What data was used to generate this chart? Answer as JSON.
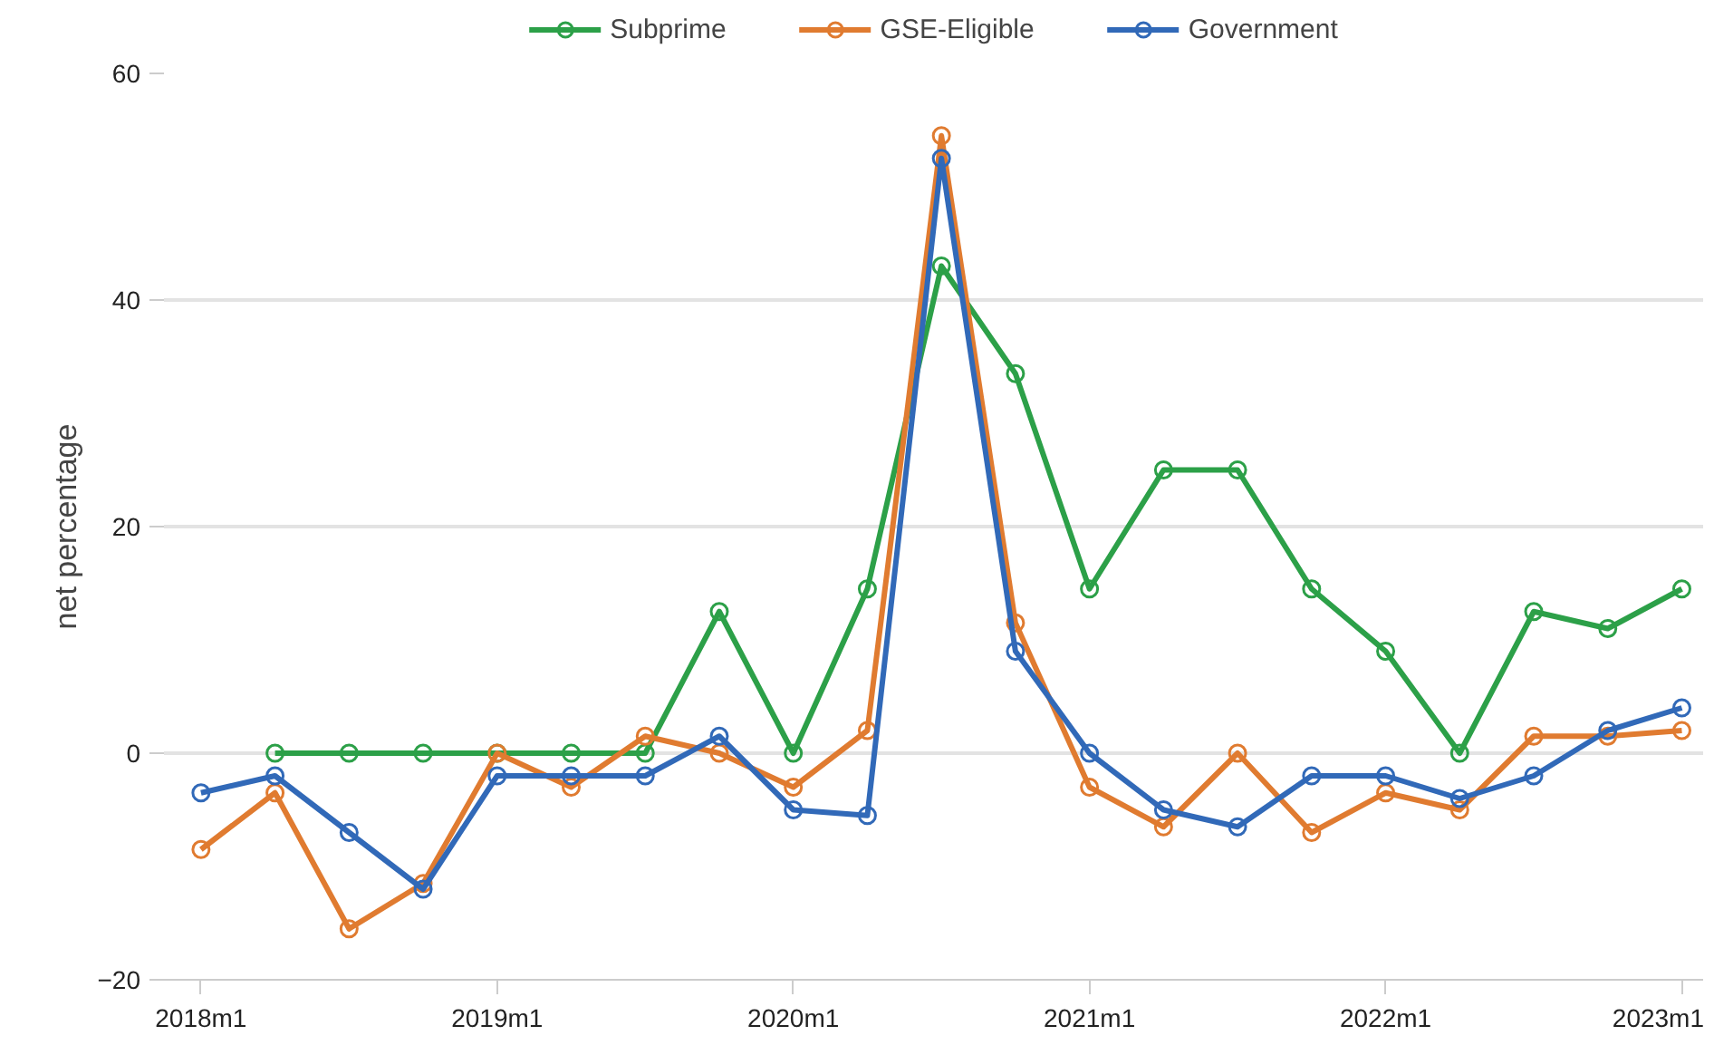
{
  "chart_data": {
    "type": "line",
    "ylabel": "net percentage",
    "categories": [
      "2018m1",
      null,
      null,
      null,
      "2019m1",
      null,
      null,
      null,
      "2020m1",
      null,
      null,
      null,
      "2021m1",
      null,
      null,
      null,
      "2022m1",
      null,
      null,
      null,
      "2023m1"
    ],
    "series": [
      {
        "name": "Subprime",
        "color": "#2ca048",
        "values": [
          null,
          0,
          0,
          0,
          0,
          0,
          0,
          12.5,
          0,
          14.5,
          43,
          33.5,
          14.5,
          25,
          25,
          14.5,
          9,
          0,
          12.5,
          11,
          14.5
        ]
      },
      {
        "name": "GSE-Eligible",
        "color": "#e07b30",
        "values": [
          -8.5,
          -3.5,
          -15.5,
          -11.5,
          0,
          -3,
          1.5,
          0,
          -3,
          2,
          54.5,
          11.5,
          -3,
          -6.5,
          0,
          -7,
          -3.5,
          -5,
          1.5,
          1.5,
          2
        ]
      },
      {
        "name": "Government",
        "color": "#3169b8",
        "values": [
          -3.5,
          -2,
          -7,
          -12,
          -2,
          -2,
          -2,
          1.5,
          -5,
          -5.5,
          52.5,
          9,
          0,
          -5,
          -6.5,
          -2,
          -2,
          -4,
          -2,
          2,
          4
        ]
      }
    ],
    "ylim": [
      -20,
      60
    ],
    "yticks": [
      -20,
      0,
      20,
      40,
      60
    ],
    "grid": "y",
    "legend": "top",
    "marker": "circle",
    "line_style": "solid"
  }
}
